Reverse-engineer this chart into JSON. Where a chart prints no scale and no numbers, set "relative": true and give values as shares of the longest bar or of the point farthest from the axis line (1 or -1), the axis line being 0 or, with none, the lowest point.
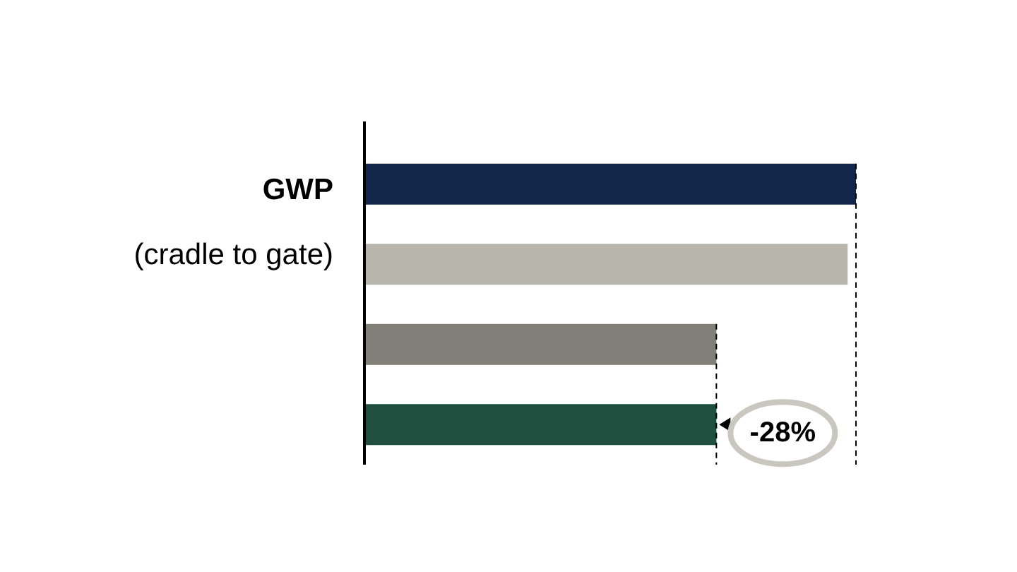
{
  "chart_data": {
    "type": "bar",
    "orientation": "horizontal",
    "relative": true,
    "ylabel": "GWP\n(cradle to gate)",
    "categories": [
      null,
      null,
      null,
      null
    ],
    "colors": [
      "#12264a",
      "#b8b5ad",
      "#827e78",
      "#1f4f3f"
    ],
    "values": [
      1,
      0.983,
      0.716,
      0.716
    ],
    "ref_lines": [
      {
        "axis": "x",
        "value": 1,
        "line_style": "dashed",
        "color": "#000000"
      },
      {
        "axis": "x",
        "value": 0.716,
        "line_style": "dashed",
        "color": "#000000"
      }
    ],
    "annotations": [
      {
        "text": "-28%",
        "x": 0.716
      }
    ],
    "legend": false
  }
}
